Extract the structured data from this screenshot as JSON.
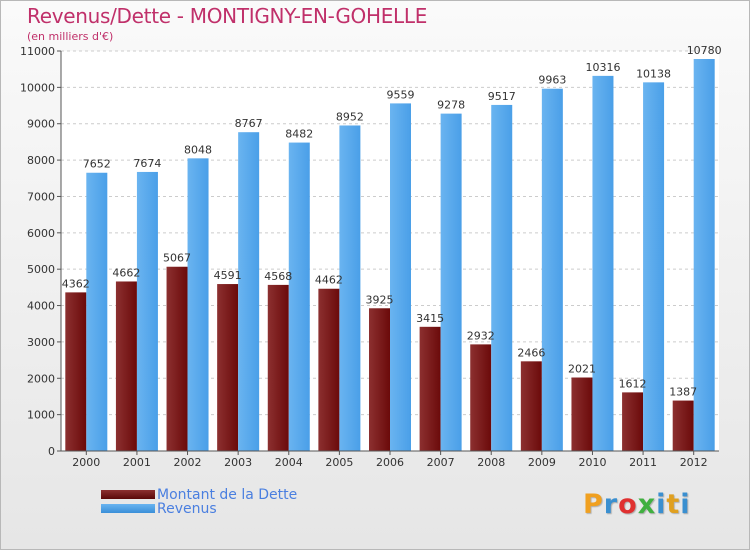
{
  "title": "Revenus/Dette - MONTIGNY-EN-GOHELLE",
  "subtitle": "(en milliers d'€)",
  "logo": {
    "letters": [
      "P",
      "r",
      "o",
      "x",
      "i",
      "t",
      "i"
    ],
    "colors": [
      "#f0a020",
      "#3a8fd0",
      "#e03030",
      "#40b040",
      "#3a8fd0",
      "#e0a020",
      "#3a8fd0"
    ]
  },
  "colors": {
    "debt": "#6b0a0a",
    "debt_light": "#8c3030",
    "revenue": "#4a9fe8",
    "revenue_light": "#6ab4f0"
  },
  "chart_data": {
    "type": "bar",
    "categories": [
      "2000",
      "2001",
      "2002",
      "2003",
      "2004",
      "2005",
      "2006",
      "2007",
      "2008",
      "2009",
      "2010",
      "2011",
      "2012"
    ],
    "series": [
      {
        "name": "Montant de la Dette",
        "values": [
          4362,
          4662,
          5067,
          4591,
          4568,
          4462,
          3925,
          3415,
          2932,
          2466,
          2021,
          1612,
          1387
        ]
      },
      {
        "name": "Revenus",
        "values": [
          7652,
          7674,
          8048,
          8767,
          8482,
          8952,
          9559,
          9278,
          9517,
          9963,
          10316,
          10138,
          10780
        ]
      }
    ],
    "data_labels": [
      [
        "4362",
        "4662",
        "5067",
        "4591",
        "4568",
        "4462",
        "3925",
        "3415",
        "2932",
        "2466",
        "2021",
        "1612",
        "1387"
      ],
      [
        "7652",
        "7674",
        "8048",
        "8767",
        "8482",
        "8952",
        "9559",
        "9278",
        "9517",
        "9963",
        "10316",
        "10138",
        "10780"
      ]
    ],
    "yticks": [
      "0",
      "1000",
      "2000",
      "3000",
      "4000",
      "5000",
      "6000",
      "7000",
      "8000",
      "9000",
      "10000",
      "11000"
    ],
    "ylim": [
      0,
      11000
    ],
    "grid": true,
    "legend_position": "bottom-left"
  }
}
